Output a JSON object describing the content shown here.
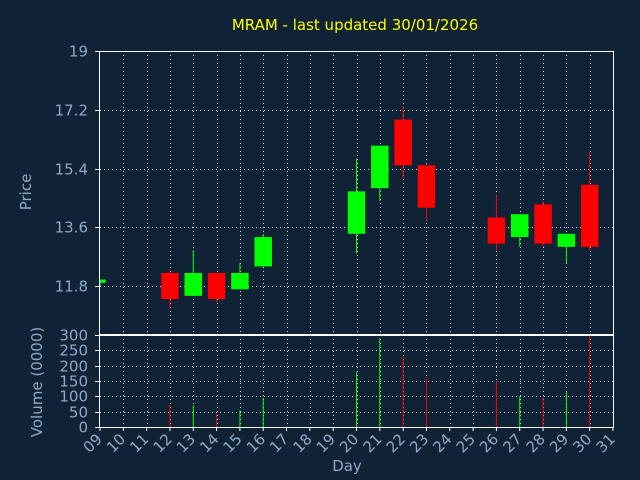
{
  "chart_data": {
    "type": "candlestick",
    "title": "MRAM - last updated 30/01/2026",
    "xlabel": "Day",
    "price_panel": {
      "ylabel": "Price",
      "ylim": [
        10.3,
        19.0
      ],
      "yticks": [
        "19",
        "17.2",
        "15.4",
        "13.6",
        "11.8"
      ],
      "ytick_values": [
        19.0,
        17.2,
        15.4,
        13.6,
        11.8
      ],
      "grid": true
    },
    "volume_panel": {
      "ylabel": "Volume (0000)",
      "ylim": [
        0,
        300
      ],
      "yticks": [
        "300",
        "250",
        "200",
        "150",
        "100",
        "50",
        "0"
      ],
      "ytick_values": [
        300,
        250,
        200,
        150,
        100,
        50,
        0
      ],
      "grid": true
    },
    "x_ticks": [
      "09",
      "10",
      "11",
      "12",
      "13",
      "14",
      "15",
      "16",
      "17",
      "18",
      "19",
      "20",
      "21",
      "22",
      "23",
      "24",
      "25",
      "26",
      "27",
      "28",
      "29",
      "30",
      "31"
    ],
    "x_range": [
      9,
      31
    ],
    "colors": {
      "up": "#00ff00",
      "down": "#ff0000"
    },
    "candles": [
      {
        "day": 9,
        "open": 11.9,
        "high": 12.0,
        "low": 11.8,
        "close": 12.0,
        "volume": 0
      },
      {
        "day": 12,
        "open": 12.2,
        "high": 12.3,
        "low": 11.1,
        "close": 11.4,
        "volume": 70
      },
      {
        "day": 13,
        "open": 11.5,
        "high": 12.9,
        "low": 11.5,
        "close": 12.2,
        "volume": 70
      },
      {
        "day": 14,
        "open": 12.2,
        "high": 12.2,
        "low": 11.3,
        "close": 11.4,
        "volume": 45
      },
      {
        "day": 15,
        "open": 11.7,
        "high": 12.5,
        "low": 11.7,
        "close": 12.2,
        "volume": 55
      },
      {
        "day": 16,
        "open": 12.4,
        "high": 13.4,
        "low": 12.4,
        "close": 13.3,
        "volume": 95
      },
      {
        "day": 20,
        "open": 13.4,
        "high": 15.7,
        "low": 12.8,
        "close": 14.7,
        "volume": 180
      },
      {
        "day": 21,
        "open": 14.8,
        "high": 16.1,
        "low": 14.4,
        "close": 16.1,
        "volume": 290
      },
      {
        "day": 22,
        "open": 16.9,
        "high": 17.3,
        "low": 15.1,
        "close": 15.5,
        "volume": 230
      },
      {
        "day": 23,
        "open": 15.5,
        "high": 15.5,
        "low": 13.8,
        "close": 14.2,
        "volume": 160
      },
      {
        "day": 26,
        "open": 13.9,
        "high": 14.6,
        "low": 12.9,
        "close": 13.1,
        "volume": 150
      },
      {
        "day": 27,
        "open": 13.3,
        "high": 14.0,
        "low": 13.0,
        "close": 14.0,
        "volume": 100
      },
      {
        "day": 28,
        "open": 14.3,
        "high": 14.4,
        "low": 13.0,
        "close": 13.1,
        "volume": 100
      },
      {
        "day": 29,
        "open": 13.0,
        "high": 13.4,
        "low": 12.5,
        "close": 13.4,
        "volume": 115
      },
      {
        "day": 30,
        "open": 14.9,
        "high": 15.9,
        "low": 12.9,
        "close": 13.0,
        "volume": 300
      }
    ]
  }
}
